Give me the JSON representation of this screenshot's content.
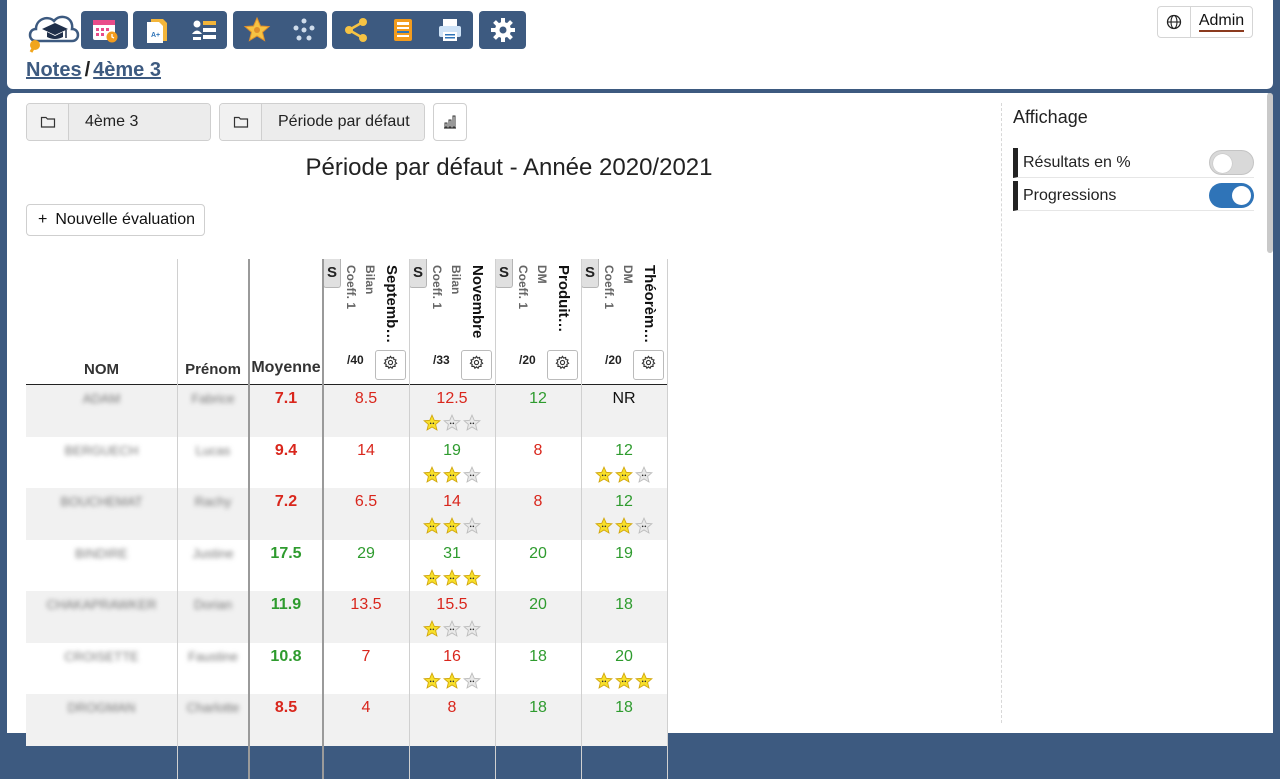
{
  "header": {
    "breadcrumb": {
      "root": "Notes",
      "separator": "/",
      "current": "4ème 3"
    },
    "user": {
      "name": "Admin"
    },
    "toolbar_icons": [
      "calendar-clock-icon",
      "document-icon",
      "list-icon",
      "star-icon",
      "people-icon",
      "share-icon",
      "book-icon",
      "printer-icon",
      "gear-icon"
    ]
  },
  "filters": {
    "class": "4ème 3",
    "period": "Période par défaut"
  },
  "period_title": "Période par défaut - Année 2020/2021",
  "new_eval_label": "Nouvelle évaluation",
  "table": {
    "headers": {
      "nom": "NOM",
      "prenom": "Prénom",
      "moyenne": "Moyenne"
    },
    "evaluations": [
      {
        "badge": "S",
        "title": "Septemb…",
        "type": "Bilan",
        "coef": "Coeff. 1",
        "max": "/40"
      },
      {
        "badge": "S",
        "title": "Novembre",
        "type": "Bilan",
        "coef": "Coeff. 1",
        "max": "/33"
      },
      {
        "badge": "S",
        "title": "Produit…",
        "type": "DM",
        "coef": "Coeff. 1",
        "max": "/20"
      },
      {
        "badge": "S",
        "title": "Théorèm…",
        "type": "DM",
        "coef": "Coeff. 1",
        "max": "/20"
      }
    ],
    "rows": [
      {
        "nom": "ADAM",
        "prenom": "Fabrice",
        "moyenne": "7.1",
        "moyenne_status": "bad",
        "grades": [
          {
            "v": "8.5",
            "s": "bad",
            "stars": 0
          },
          {
            "v": "12.5",
            "s": "bad",
            "stars": 1
          },
          {
            "v": "12",
            "s": "good",
            "stars": 0
          },
          {
            "v": "NR",
            "s": "none",
            "stars": 0
          }
        ]
      },
      {
        "nom": "BERGUECH",
        "prenom": "Lucas",
        "moyenne": "9.4",
        "moyenne_status": "bad",
        "grades": [
          {
            "v": "14",
            "s": "bad",
            "stars": 0
          },
          {
            "v": "19",
            "s": "good",
            "stars": 2
          },
          {
            "v": "8",
            "s": "bad",
            "stars": 0
          },
          {
            "v": "12",
            "s": "good",
            "stars": 2
          }
        ]
      },
      {
        "nom": "BOUCHEMAT",
        "prenom": "Rachy",
        "moyenne": "7.2",
        "moyenne_status": "bad",
        "grades": [
          {
            "v": "6.5",
            "s": "bad",
            "stars": 0
          },
          {
            "v": "14",
            "s": "bad",
            "stars": 2
          },
          {
            "v": "8",
            "s": "bad",
            "stars": 0
          },
          {
            "v": "12",
            "s": "good",
            "stars": 2
          }
        ]
      },
      {
        "nom": "BINDIRE",
        "prenom": "Justine",
        "moyenne": "17.5",
        "moyenne_status": "good",
        "grades": [
          {
            "v": "29",
            "s": "good",
            "stars": 0
          },
          {
            "v": "31",
            "s": "good",
            "stars": 3
          },
          {
            "v": "20",
            "s": "good",
            "stars": 0
          },
          {
            "v": "19",
            "s": "good",
            "stars": 0
          }
        ]
      },
      {
        "nom": "CHAKAPRAWKER",
        "prenom": "Dorian",
        "moyenne": "11.9",
        "moyenne_status": "good",
        "grades": [
          {
            "v": "13.5",
            "s": "bad",
            "stars": 0
          },
          {
            "v": "15.5",
            "s": "bad",
            "stars": 1
          },
          {
            "v": "20",
            "s": "good",
            "stars": 0
          },
          {
            "v": "18",
            "s": "good",
            "stars": 0
          }
        ]
      },
      {
        "nom": "CROISETTE",
        "prenom": "Faustine",
        "moyenne": "10.8",
        "moyenne_status": "good",
        "grades": [
          {
            "v": "7",
            "s": "bad",
            "stars": 0
          },
          {
            "v": "16",
            "s": "bad",
            "stars": 2
          },
          {
            "v": "18",
            "s": "good",
            "stars": 0
          },
          {
            "v": "20",
            "s": "good",
            "stars": 3
          }
        ]
      },
      {
        "nom": "DROGMAN",
        "prenom": "Charlotte",
        "moyenne": "8.5",
        "moyenne_status": "bad",
        "grades": [
          {
            "v": "4",
            "s": "bad",
            "stars": 0
          },
          {
            "v": "8",
            "s": "bad",
            "stars": 0
          },
          {
            "v": "18",
            "s": "good",
            "stars": 0
          },
          {
            "v": "18",
            "s": "good",
            "stars": 0
          }
        ]
      }
    ]
  },
  "affichage": {
    "title": "Affichage",
    "options": [
      {
        "label": "Résultats en %",
        "enabled": false
      },
      {
        "label": "Progressions",
        "enabled": true
      }
    ]
  },
  "colors": {
    "primary": "#3d5a80",
    "bad": "#d9261c",
    "good": "#2e9b2e",
    "toggle_on": "#2f74b8"
  }
}
